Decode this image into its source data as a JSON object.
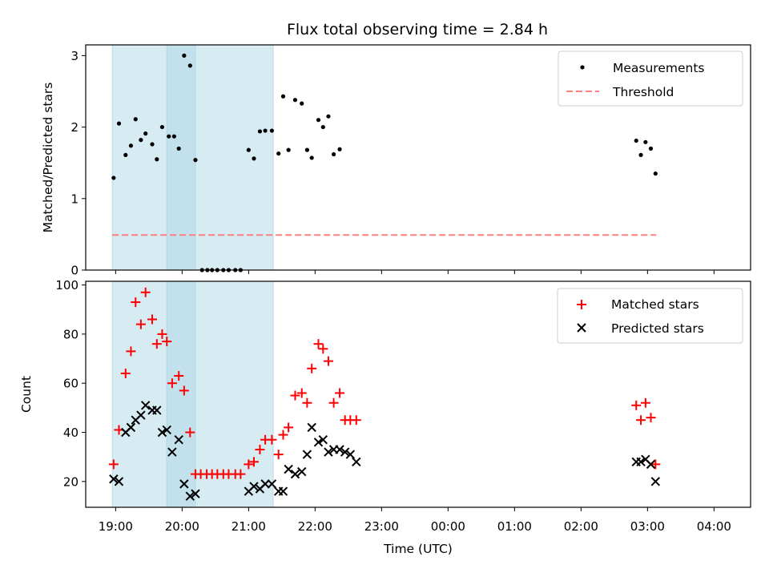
{
  "chart_data": [
    {
      "type": "scatter",
      "title": "Flux total observing time = 2.84 h",
      "xlabel": "",
      "ylabel": "Matched/Predicted stars",
      "xlim": [
        -0.45,
        9.55
      ],
      "ylim": [
        0,
        3.15
      ],
      "yticks": [
        0,
        1,
        2,
        3
      ],
      "legend": {
        "position": "top-right",
        "entries": [
          "Measurements",
          "Threshold"
        ]
      },
      "shaded_intervals": [
        [
          -0.05,
          1.2
        ],
        [
          0.77,
          2.37
        ]
      ],
      "threshold": {
        "name": "Threshold",
        "y": 0.49,
        "x_range": [
          -0.05,
          8.13
        ]
      },
      "series": [
        {
          "name": "Measurements",
          "x": [
            -0.03,
            0.05,
            0.15,
            0.23,
            0.3,
            0.38,
            0.45,
            0.55,
            0.62,
            0.7,
            0.8,
            0.88,
            0.95,
            1.03,
            1.12,
            1.2,
            1.3,
            1.38,
            1.45,
            1.53,
            1.62,
            1.7,
            1.8,
            1.88,
            2.0,
            2.08,
            2.17,
            2.25,
            2.35,
            2.45,
            2.52,
            2.6,
            2.7,
            2.8,
            2.88,
            2.95,
            3.05,
            3.12,
            3.2,
            3.28,
            3.37,
            7.83,
            7.9,
            7.97,
            8.05,
            8.12
          ],
          "y": [
            1.29,
            2.05,
            1.61,
            1.74,
            2.11,
            1.82,
            1.91,
            1.76,
            1.55,
            2.0,
            1.87,
            1.87,
            1.7,
            3.0,
            2.86,
            1.54,
            0.0,
            0.0,
            0.0,
            0.0,
            0.0,
            0.0,
            0.0,
            0.0,
            1.68,
            1.56,
            1.94,
            1.95,
            1.95,
            1.63,
            2.43,
            1.68,
            2.38,
            2.33,
            1.68,
            1.57,
            2.1,
            2.0,
            2.15,
            1.62,
            1.69,
            1.81,
            1.61,
            1.79,
            1.7,
            1.35
          ]
        }
      ]
    },
    {
      "type": "scatter",
      "title": "",
      "xlabel": "Time (UTC)",
      "ylabel": "Count",
      "xlim": [
        -0.45,
        9.55
      ],
      "ylim": [
        9.5,
        101.5
      ],
      "yticks": [
        20,
        40,
        60,
        80,
        100
      ],
      "xticks": [
        "19:00",
        "20:00",
        "21:00",
        "22:00",
        "23:00",
        "00:00",
        "01:00",
        "02:00",
        "03:00",
        "04:00"
      ],
      "legend": {
        "position": "top-right",
        "entries": [
          "Matched stars",
          "Predicted stars"
        ]
      },
      "shaded_intervals": [
        [
          -0.05,
          1.2
        ],
        [
          0.77,
          2.37
        ]
      ],
      "series": [
        {
          "name": "Matched stars",
          "x": [
            -0.03,
            0.05,
            0.15,
            0.23,
            0.3,
            0.38,
            0.45,
            0.55,
            0.62,
            0.7,
            0.77,
            0.85,
            0.95,
            1.03,
            1.12,
            1.2,
            1.28,
            1.37,
            1.45,
            1.53,
            1.62,
            1.7,
            1.8,
            1.88,
            2.0,
            2.08,
            2.17,
            2.25,
            2.35,
            2.45,
            2.52,
            2.6,
            2.7,
            2.8,
            2.88,
            2.95,
            3.05,
            3.12,
            3.2,
            3.28,
            3.37,
            3.45,
            3.53,
            3.62,
            7.83,
            7.9,
            7.97,
            8.05,
            8.12
          ],
          "y": [
            27,
            41,
            64,
            73,
            93,
            84,
            97,
            86,
            76,
            80,
            77,
            60,
            63,
            57,
            40,
            23,
            23,
            23,
            23,
            23,
            23,
            23,
            23,
            23,
            27,
            28,
            33,
            37,
            37,
            31,
            39,
            42,
            55,
            56,
            52,
            66,
            76,
            74,
            69,
            52,
            56,
            45,
            45,
            45,
            51,
            45,
            52,
            46,
            27
          ]
        },
        {
          "name": "Predicted stars",
          "x": [
            -0.03,
            0.05,
            0.15,
            0.23,
            0.3,
            0.38,
            0.45,
            0.55,
            0.62,
            0.7,
            0.77,
            0.85,
            0.95,
            1.03,
            1.12,
            1.2,
            2.0,
            2.08,
            2.17,
            2.25,
            2.35,
            2.45,
            2.52,
            2.6,
            2.7,
            2.8,
            2.88,
            2.95,
            3.05,
            3.12,
            3.2,
            3.28,
            3.37,
            3.45,
            3.53,
            3.62,
            7.83,
            7.9,
            7.97,
            8.05,
            8.12
          ],
          "y": [
            21,
            20,
            40,
            42,
            45,
            47,
            51,
            49,
            49,
            40,
            41,
            32,
            37,
            19,
            14,
            15,
            16,
            18,
            17,
            19,
            19,
            16,
            16,
            25,
            23,
            24,
            31,
            42,
            36,
            37,
            32,
            33,
            33,
            32,
            31,
            28,
            28,
            28,
            29,
            27,
            20
          ]
        }
      ]
    }
  ],
  "colors": {
    "measurements": "#000000",
    "threshold": "#ff7f7f",
    "matched": "#ff0000",
    "predicted": "#000000",
    "shade": "#add8e6"
  }
}
